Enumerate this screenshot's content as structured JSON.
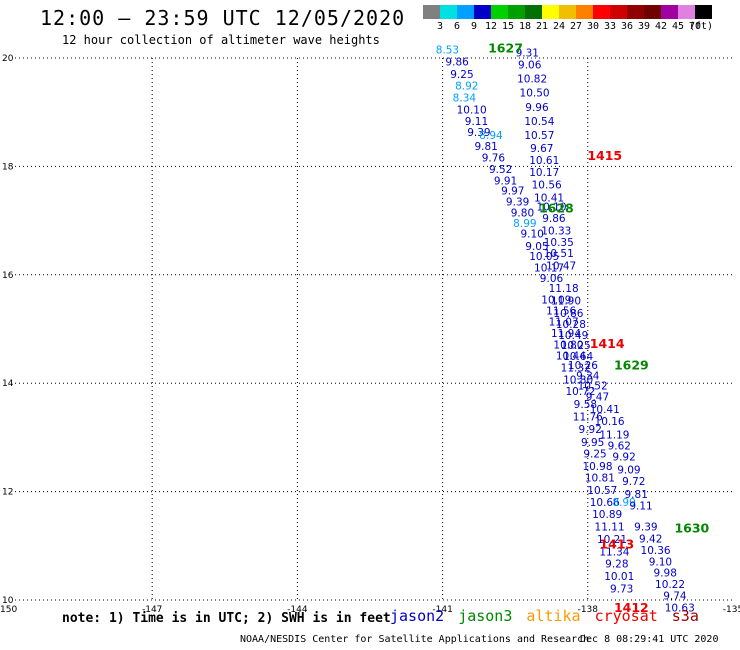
{
  "header": {
    "title": "12:00 – 23:59 UTC 12/05/2020",
    "subtitle": "12 hour collection of altimeter wave heights"
  },
  "legend": {
    "unit": "(ft)",
    "items": [
      {
        "label": "3",
        "color": "#808080"
      },
      {
        "label": "6",
        "color": "#00e0e0"
      },
      {
        "label": "9",
        "color": "#00a0ff"
      },
      {
        "label": "12",
        "color": "#0000c8"
      },
      {
        "label": "15",
        "color": "#00d000"
      },
      {
        "label": "18",
        "color": "#00a000"
      },
      {
        "label": "21",
        "color": "#007000"
      },
      {
        "label": "24",
        "color": "#ffff00"
      },
      {
        "label": "27",
        "color": "#f0c000"
      },
      {
        "label": "30",
        "color": "#ff8000"
      },
      {
        "label": "33",
        "color": "#ff0000"
      },
      {
        "label": "36",
        "color": "#d00000"
      },
      {
        "label": "39",
        "color": "#900000"
      },
      {
        "label": "42",
        "color": "#700000"
      },
      {
        "label": "45",
        "color": "#a000a0"
      },
      {
        "label": "70",
        "color": "#e080e0"
      },
      {
        "label": "",
        "color": "#000000"
      }
    ]
  },
  "colors": {
    "jason2": "#0000c8",
    "jason3": "#008800",
    "altika": "#ff9900",
    "cryosat": "#ee0000",
    "s3a": "#990000",
    "light": "#00a0ff"
  },
  "axes": {
    "lon_ticks": [
      "-150",
      "-147",
      "-144",
      "-141",
      "-138",
      "-135"
    ],
    "lat_ticks": [
      "10",
      "12",
      "14",
      "16",
      "18",
      "20"
    ]
  },
  "chart_data": {
    "type": "scatter",
    "xlabel": "",
    "ylabel": "",
    "xlim": [
      -150,
      -135
    ],
    "ylim": [
      10,
      20
    ],
    "grid": true,
    "tracks": [
      {
        "color_key": "jason2",
        "points": [
          {
            "lon": -140.7,
            "lat": 19.86,
            "v": "9.86"
          },
          {
            "lon": -140.6,
            "lat": 19.63,
            "v": "9.25"
          },
          {
            "lon": -140.4,
            "lat": 18.98,
            "v": "10.10"
          },
          {
            "lon": -140.3,
            "lat": 18.76,
            "v": "9.11"
          },
          {
            "lon": -140.25,
            "lat": 18.56,
            "v": "9.39"
          },
          {
            "lon": -140.1,
            "lat": 18.3,
            "v": "9.81"
          },
          {
            "lon": -139.95,
            "lat": 18.09,
            "v": "9.76"
          },
          {
            "lon": -139.8,
            "lat": 17.88,
            "v": "9.52"
          },
          {
            "lon": -139.7,
            "lat": 17.67,
            "v": "9.91"
          },
          {
            "lon": -139.55,
            "lat": 17.48,
            "v": "9.97"
          },
          {
            "lon": -139.45,
            "lat": 17.28,
            "v": "9.39"
          },
          {
            "lon": -139.35,
            "lat": 17.08,
            "v": "9.80"
          },
          {
            "lon": -139.15,
            "lat": 16.69,
            "v": "9.10"
          },
          {
            "lon": -139.05,
            "lat": 16.46,
            "v": "9.05"
          },
          {
            "lon": -138.9,
            "lat": 16.27,
            "v": "10.05"
          },
          {
            "lon": -138.8,
            "lat": 16.06,
            "v": "10.17"
          },
          {
            "lon": -138.75,
            "lat": 15.87,
            "v": "9.06"
          },
          {
            "lon": -138.65,
            "lat": 15.47,
            "v": "10.09"
          },
          {
            "lon": -138.55,
            "lat": 15.27,
            "v": "11.56"
          },
          {
            "lon": -138.5,
            "lat": 15.06,
            "v": "11.07"
          },
          {
            "lon": -138.45,
            "lat": 14.85,
            "v": "11.94"
          },
          {
            "lon": -138.4,
            "lat": 14.64,
            "v": "10.80"
          },
          {
            "lon": -138.35,
            "lat": 14.44,
            "v": "10.44"
          },
          {
            "lon": -138.25,
            "lat": 14.22,
            "v": "11.32"
          },
          {
            "lon": -138.2,
            "lat": 13.99,
            "v": "10.80"
          },
          {
            "lon": -138.15,
            "lat": 13.78,
            "v": "10.72"
          },
          {
            "lon": -138.05,
            "lat": 13.54,
            "v": "9.58"
          },
          {
            "lon": -138.0,
            "lat": 13.31,
            "v": "11.76"
          },
          {
            "lon": -137.95,
            "lat": 13.08,
            "v": "9.92"
          },
          {
            "lon": -137.9,
            "lat": 12.84,
            "v": "9.95"
          },
          {
            "lon": -137.85,
            "lat": 12.63,
            "v": "9.25"
          },
          {
            "lon": -137.8,
            "lat": 12.4,
            "v": "10.98"
          },
          {
            "lon": -137.75,
            "lat": 12.19,
            "v": "10.81"
          },
          {
            "lon": -137.7,
            "lat": 11.96,
            "v": "10.57"
          },
          {
            "lon": -137.65,
            "lat": 11.73,
            "v": "10.66"
          },
          {
            "lon": -137.6,
            "lat": 11.51,
            "v": "10.89"
          },
          {
            "lon": -137.55,
            "lat": 11.28,
            "v": "11.11"
          },
          {
            "lon": -137.5,
            "lat": 11.05,
            "v": "10.21"
          },
          {
            "lon": -137.45,
            "lat": 10.82,
            "v": "11.34"
          },
          {
            "lon": -137.4,
            "lat": 10.6,
            "v": "9.28"
          },
          {
            "lon": -137.35,
            "lat": 10.37,
            "v": "10.01"
          },
          {
            "lon": -137.3,
            "lat": 10.14,
            "v": "9.73"
          }
        ]
      },
      {
        "color_key": "light",
        "points": [
          {
            "lon": -140.9,
            "lat": 20.08,
            "v": "8.53"
          },
          {
            "lon": -140.5,
            "lat": 19.42,
            "v": "8.92"
          },
          {
            "lon": -140.55,
            "lat": 19.2,
            "v": "8.34"
          },
          {
            "lon": -140.0,
            "lat": 18.51,
            "v": "8.94"
          },
          {
            "lon": -139.3,
            "lat": 16.88,
            "v": "8.99"
          },
          {
            "lon": -137.25,
            "lat": 11.73,
            "v": "8.99"
          }
        ]
      },
      {
        "color_key": "jason2",
        "points": [
          {
            "lon": -139.25,
            "lat": 20.03,
            "v": "9.31"
          },
          {
            "lon": -139.2,
            "lat": 19.81,
            "v": "9.06"
          },
          {
            "lon": -139.15,
            "lat": 19.55,
            "v": "10.82"
          },
          {
            "lon": -139.1,
            "lat": 19.29,
            "v": "10.50"
          },
          {
            "lon": -139.05,
            "lat": 19.02,
            "v": "9.96"
          },
          {
            "lon": -139.0,
            "lat": 18.76,
            "v": "10.54"
          },
          {
            "lon": -139.0,
            "lat": 18.51,
            "v": "10.57"
          },
          {
            "lon": -138.95,
            "lat": 18.27,
            "v": "9.67"
          },
          {
            "lon": -138.9,
            "lat": 18.04,
            "v": "10.61"
          },
          {
            "lon": -138.9,
            "lat": 17.82,
            "v": "10.17"
          },
          {
            "lon": -138.85,
            "lat": 17.59,
            "v": "10.56"
          },
          {
            "lon": -138.8,
            "lat": 17.35,
            "v": "10.41"
          },
          {
            "lon": -138.75,
            "lat": 17.19,
            "v": "10.10"
          },
          {
            "lon": -138.7,
            "lat": 16.97,
            "v": "9.86"
          },
          {
            "lon": -138.65,
            "lat": 16.74,
            "v": "10.33"
          },
          {
            "lon": -138.6,
            "lat": 16.53,
            "v": "10.35"
          },
          {
            "lon": -138.6,
            "lat": 16.33,
            "v": "10.51"
          },
          {
            "lon": -138.55,
            "lat": 16.1,
            "v": "10.47"
          },
          {
            "lon": -138.5,
            "lat": 15.68,
            "v": "11.18"
          },
          {
            "lon": -138.45,
            "lat": 15.45,
            "v": "11.90"
          },
          {
            "lon": -138.4,
            "lat": 15.22,
            "v": "10.86"
          },
          {
            "lon": -138.35,
            "lat": 15.02,
            "v": "10.28"
          },
          {
            "lon": -138.3,
            "lat": 14.82,
            "v": "10.49"
          },
          {
            "lon": -138.25,
            "lat": 14.63,
            "v": "10.25"
          },
          {
            "lon": -138.2,
            "lat": 14.43,
            "v": "10.64"
          },
          {
            "lon": -138.1,
            "lat": 14.26,
            "v": "10.26"
          },
          {
            "lon": -138.0,
            "lat": 14.07,
            "v": "9.34"
          },
          {
            "lon": -137.9,
            "lat": 13.88,
            "v": "10.52"
          },
          {
            "lon": -137.8,
            "lat": 13.68,
            "v": "9.47"
          },
          {
            "lon": -137.65,
            "lat": 13.45,
            "v": "10.41"
          },
          {
            "lon": -137.55,
            "lat": 13.23,
            "v": "10.16"
          },
          {
            "lon": -137.45,
            "lat": 12.98,
            "v": "11.19"
          },
          {
            "lon": -137.35,
            "lat": 12.78,
            "v": "9.62"
          },
          {
            "lon": -137.25,
            "lat": 12.57,
            "v": "9.92"
          },
          {
            "lon": -137.15,
            "lat": 12.33,
            "v": "9.09"
          },
          {
            "lon": -137.05,
            "lat": 12.12,
            "v": "9.72"
          },
          {
            "lon": -137.0,
            "lat": 11.88,
            "v": "9.81"
          },
          {
            "lon": -136.9,
            "lat": 11.67,
            "v": "9.11"
          },
          {
            "lon": -136.8,
            "lat": 11.28,
            "v": "9.39"
          },
          {
            "lon": -136.7,
            "lat": 11.06,
            "v": "9.42"
          },
          {
            "lon": -136.6,
            "lat": 10.85,
            "v": "10.36"
          },
          {
            "lon": -136.5,
            "lat": 10.64,
            "v": "9.10"
          },
          {
            "lon": -136.4,
            "lat": 10.43,
            "v": "9.98"
          },
          {
            "lon": -136.3,
            "lat": 10.22,
            "v": "10.22"
          },
          {
            "lon": -136.2,
            "lat": 10.01,
            "v": "9.74"
          },
          {
            "lon": -136.1,
            "lat": 9.79,
            "v": "10.63"
          }
        ]
      }
    ],
    "passes": [
      {
        "label": "1627",
        "color_key": "jason3",
        "lon": -139.7,
        "lat": 20.1
      },
      {
        "label": "1415",
        "color_key": "cryosat",
        "lon": -137.65,
        "lat": 18.12
      },
      {
        "label": "1628",
        "color_key": "jason3",
        "lon": -138.65,
        "lat": 17.15
      },
      {
        "label": "1414",
        "color_key": "cryosat",
        "lon": -137.6,
        "lat": 14.65
      },
      {
        "label": "1629",
        "color_key": "jason3",
        "lon": -137.1,
        "lat": 14.25
      },
      {
        "label": "1630",
        "color_key": "jason3",
        "lon": -135.85,
        "lat": 11.25
      },
      {
        "label": "1413",
        "color_key": "cryosat",
        "lon": -137.4,
        "lat": 10.95
      },
      {
        "label": "1412",
        "color_key": "cryosat",
        "lon": -137.1,
        "lat": 9.78
      }
    ]
  },
  "footer": {
    "note": "note: 1) Time is in UTC; 2) SWH is in feet",
    "missions": [
      {
        "name": "jason2",
        "color_key": "jason2"
      },
      {
        "name": "jason3",
        "color_key": "jason3"
      },
      {
        "name": "altika",
        "color_key": "altika"
      },
      {
        "name": "cryosat",
        "color_key": "cryosat"
      },
      {
        "name": "s3a",
        "color_key": "s3a"
      }
    ],
    "credit": "NOAA/NESDIS Center for Satellite Applications and Research",
    "timestamp": "Dec  8 08:29:41 UTC 2020"
  }
}
